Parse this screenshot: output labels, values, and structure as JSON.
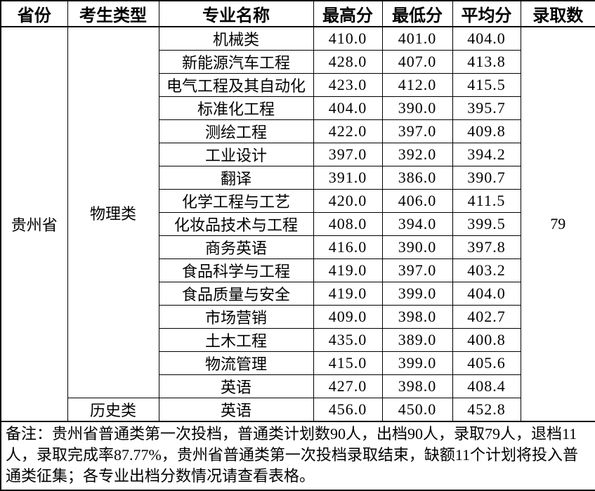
{
  "table": {
    "headers": {
      "province": "省份",
      "candidate_type": "考生类型",
      "major_name": "专业名称",
      "max_score": "最高分",
      "min_score": "最低分",
      "avg_score": "平均分",
      "admit_count": "录取数"
    },
    "province": "贵州省",
    "admit_count": "79",
    "physics": {
      "label": "物理类",
      "rows": [
        {
          "major": "机械类",
          "max": "410.0",
          "min": "401.0",
          "avg": "404.0"
        },
        {
          "major": "新能源汽车工程",
          "max": "428.0",
          "min": "407.0",
          "avg": "413.8"
        },
        {
          "major": "电气工程及其自动化",
          "max": "423.0",
          "min": "412.0",
          "avg": "415.5"
        },
        {
          "major": "标准化工程",
          "max": "404.0",
          "min": "390.0",
          "avg": "395.7"
        },
        {
          "major": "测绘工程",
          "max": "422.0",
          "min": "397.0",
          "avg": "409.8"
        },
        {
          "major": "工业设计",
          "max": "397.0",
          "min": "392.0",
          "avg": "394.2"
        },
        {
          "major": "翻译",
          "max": "391.0",
          "min": "386.0",
          "avg": "390.7"
        },
        {
          "major": "化学工程与工艺",
          "max": "420.0",
          "min": "406.0",
          "avg": "411.5"
        },
        {
          "major": "化妆品技术与工程",
          "max": "408.0",
          "min": "394.0",
          "avg": "399.5"
        },
        {
          "major": "商务英语",
          "max": "416.0",
          "min": "390.0",
          "avg": "397.8"
        },
        {
          "major": "食品科学与工程",
          "max": "419.0",
          "min": "397.0",
          "avg": "403.2"
        },
        {
          "major": "食品质量与安全",
          "max": "419.0",
          "min": "399.0",
          "avg": "404.0"
        },
        {
          "major": "市场营销",
          "max": "409.0",
          "min": "398.0",
          "avg": "402.7"
        },
        {
          "major": "土木工程",
          "max": "435.0",
          "min": "389.0",
          "avg": "400.8"
        },
        {
          "major": "物流管理",
          "max": "415.0",
          "min": "399.0",
          "avg": "405.6"
        },
        {
          "major": "英语",
          "max": "427.0",
          "min": "398.0",
          "avg": "408.4"
        }
      ]
    },
    "history": {
      "label": "历史类",
      "rows": [
        {
          "major": "英语",
          "max": "456.0",
          "min": "450.0",
          "avg": "452.8"
        }
      ]
    },
    "note": "备注：贵州省普通类第一次投档，普通类计划数90人，出档90人，录取79人，退档11人，录取完成率87.77%，贵州省普通类第一次投档录取结束，缺额11个计划将投入普通类征集；各专业出档分数情况请查看表格。"
  }
}
